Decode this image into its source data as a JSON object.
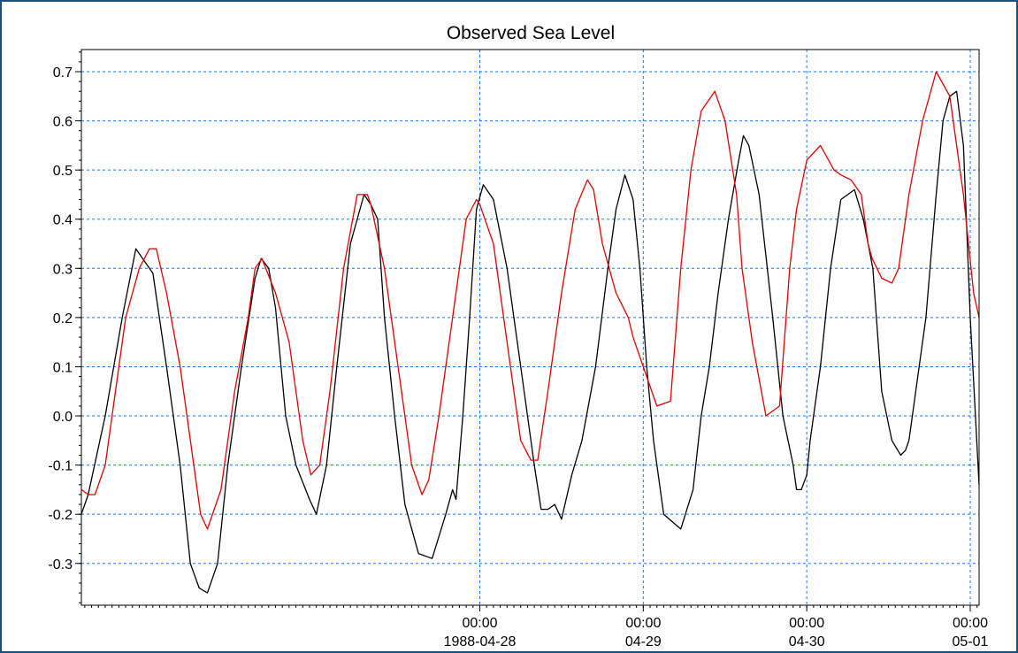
{
  "chart_data": {
    "type": "line",
    "title": "Observed Sea Level",
    "xlabel": "",
    "ylabel": "",
    "x_range_hours": [
      -58.5,
      73.3
    ],
    "ylim": [
      -0.385,
      0.745
    ],
    "y_ticks": [
      0.7,
      0.6,
      0.5,
      0.4,
      0.3,
      0.2,
      0.1,
      0.0,
      -0.1,
      -0.2,
      -0.3
    ],
    "y_tick_labels": [
      "0.7",
      "0.6",
      "0.5",
      "0.4",
      "0.3",
      "0.2",
      "0.1",
      "0.0",
      "-0.1",
      "-0.2",
      "-0.3"
    ],
    "x_ticks": [
      {
        "hours": 0,
        "time": "00:00",
        "date": "1988-04-28"
      },
      {
        "hours": 24,
        "time": "00:00",
        "date": "04-29"
      },
      {
        "hours": 48,
        "time": "00:00",
        "date": "04-30"
      },
      {
        "hours": 72,
        "time": "00:00",
        "date": "05-01"
      }
    ],
    "grid": true,
    "series": [
      {
        "color": "#000000",
        "x": [
          -58.5,
          -57.5,
          -55,
          -52.5,
          -50.5,
          -49.5,
          -48,
          -46,
          -44,
          -42.5,
          -41.2,
          -40,
          -38.5,
          -37,
          -35,
          -33,
          -32.1,
          -31,
          -30,
          -28.5,
          -27,
          -25,
          -24,
          -22.5,
          -21,
          -19,
          -17,
          -16,
          -15,
          -14,
          -12.5,
          -11,
          -9,
          -7,
          -5,
          -4,
          -3.5,
          -2.5,
          -1.5,
          -0.5,
          0.5,
          2,
          4,
          6.5,
          8,
          9,
          10,
          11,
          12,
          13.5,
          15,
          17,
          18.8,
          20,
          21.3,
          22.5,
          23.5,
          24.5,
          25.5,
          27,
          29.5,
          31.3,
          32.5,
          33.7,
          35,
          36.5,
          38,
          38.7,
          39.5,
          41,
          43,
          44.5,
          46,
          46.5,
          47.2,
          48,
          48.5,
          50,
          51.5,
          53,
          55,
          56.3,
          57.7,
          59,
          60.5,
          61.8,
          62.5,
          63,
          64,
          65.5,
          67,
          68,
          69,
          70,
          71,
          72,
          73.3
        ],
        "y": [
          -0.2,
          -0.16,
          0.0,
          0.2,
          0.34,
          0.32,
          0.29,
          0.1,
          -0.1,
          -0.3,
          -0.35,
          -0.36,
          -0.3,
          -0.1,
          0.1,
          0.28,
          0.32,
          0.3,
          0.22,
          0.0,
          -0.1,
          -0.17,
          -0.2,
          -0.1,
          0.1,
          0.35,
          0.45,
          0.43,
          0.4,
          0.2,
          0.0,
          -0.18,
          -0.28,
          -0.29,
          -0.2,
          -0.15,
          -0.17,
          0.0,
          0.2,
          0.42,
          0.47,
          0.44,
          0.3,
          0.05,
          -0.1,
          -0.19,
          -0.19,
          -0.18,
          -0.21,
          -0.12,
          -0.05,
          0.1,
          0.3,
          0.42,
          0.49,
          0.44,
          0.3,
          0.1,
          -0.05,
          -0.2,
          -0.23,
          -0.15,
          0.0,
          0.1,
          0.25,
          0.4,
          0.52,
          0.57,
          0.55,
          0.45,
          0.2,
          0.0,
          -0.1,
          -0.15,
          -0.15,
          -0.12,
          -0.05,
          0.1,
          0.3,
          0.44,
          0.46,
          0.4,
          0.3,
          0.05,
          -0.05,
          -0.08,
          -0.07,
          -0.05,
          0.05,
          0.2,
          0.45,
          0.6,
          0.65,
          0.66,
          0.55,
          0.2,
          -0.14
        ]
      },
      {
        "color": "#e00000",
        "x": [
          -58.5,
          -57.5,
          -56.5,
          -55,
          -54,
          -52,
          -50,
          -48.5,
          -47.5,
          -46,
          -44,
          -42,
          -41,
          -40,
          -38,
          -36,
          -34,
          -33,
          -32,
          -30,
          -28,
          -26,
          -24.8,
          -23.5,
          -22,
          -20,
          -18,
          -16.5,
          -16,
          -14,
          -12,
          -10,
          -8.5,
          -7.5,
          -6,
          -4,
          -2,
          -0.5,
          0,
          2,
          4,
          6,
          7.5,
          8.5,
          10,
          12,
          14,
          15.8,
          16.7,
          18,
          20,
          21.8,
          22.5,
          24,
          26,
          28,
          29.5,
          31,
          32.5,
          34.5,
          36,
          37.7,
          38.5,
          40,
          42,
          44,
          45.5,
          46.5,
          48,
          50,
          52,
          53,
          54.5,
          56,
          57,
          57.6,
          59,
          60.5,
          61.5,
          63,
          65,
          67,
          69,
          71,
          72.5,
          73.3
        ],
        "y": [
          -0.15,
          -0.16,
          -0.16,
          -0.1,
          0.0,
          0.2,
          0.3,
          0.34,
          0.34,
          0.25,
          0.1,
          -0.1,
          -0.2,
          -0.23,
          -0.15,
          0.05,
          0.2,
          0.3,
          0.32,
          0.25,
          0.15,
          -0.05,
          -0.12,
          -0.1,
          0.05,
          0.3,
          0.45,
          0.45,
          0.43,
          0.3,
          0.1,
          -0.1,
          -0.16,
          -0.13,
          0.0,
          0.2,
          0.4,
          0.44,
          0.43,
          0.35,
          0.15,
          -0.05,
          -0.09,
          -0.09,
          0.05,
          0.25,
          0.42,
          0.48,
          0.46,
          0.35,
          0.25,
          0.2,
          0.16,
          0.1,
          0.02,
          0.03,
          0.3,
          0.5,
          0.62,
          0.66,
          0.6,
          0.45,
          0.3,
          0.15,
          0.0,
          0.02,
          0.3,
          0.42,
          0.52,
          0.55,
          0.5,
          0.49,
          0.48,
          0.45,
          0.35,
          0.32,
          0.28,
          0.27,
          0.3,
          0.45,
          0.6,
          0.7,
          0.65,
          0.45,
          0.25,
          0.2
        ]
      }
    ]
  }
}
